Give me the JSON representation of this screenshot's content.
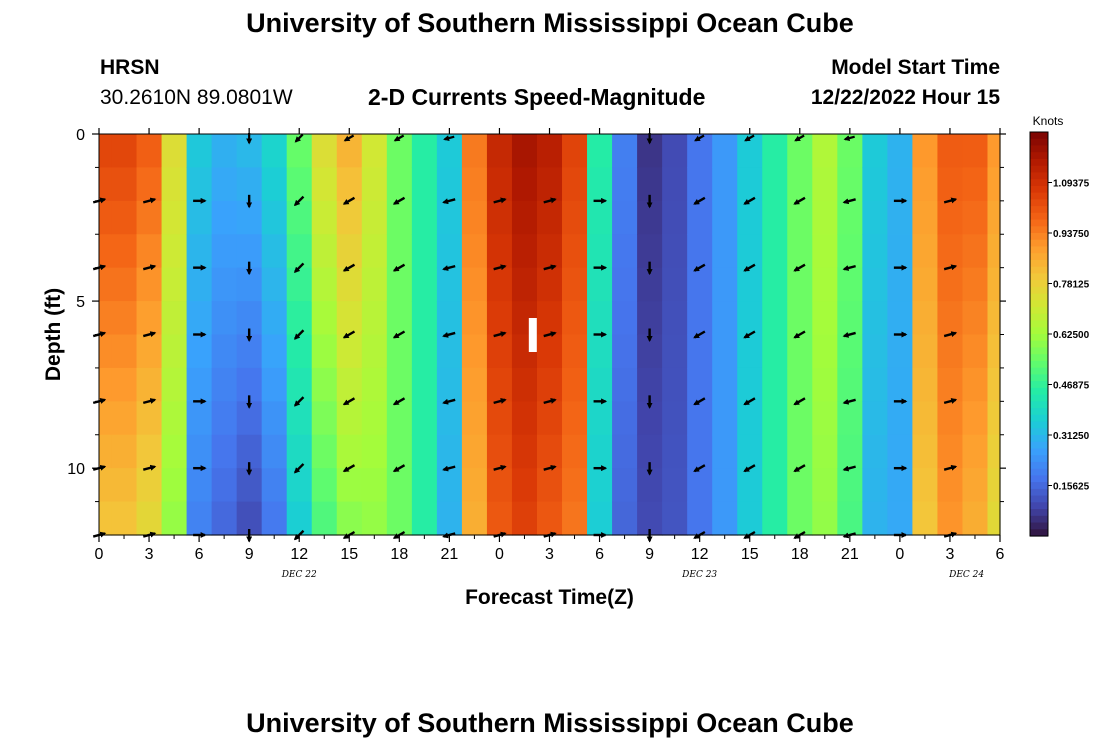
{
  "page": {
    "title_top": "University of Southern Mississippi Ocean Cube",
    "title_bottom": "University of Southern Mississippi Ocean Cube",
    "station_code": "HRSN",
    "station_coords": "30.2610N  89.0801W",
    "plot_title": "2-D Currents Speed-Magnitude",
    "model_start_label": "Model Start Time",
    "model_start_value": "12/22/2022 Hour 15"
  },
  "chart_data": {
    "type": "heatmap",
    "title": "2-D Currents Speed-Magnitude",
    "xlabel": "Forecast Time(Z)",
    "ylabel": "Depth (ft)",
    "x_tick_labels": [
      "0",
      "3",
      "6",
      "9",
      "12",
      "15",
      "18",
      "21",
      "0",
      "3",
      "6",
      "9",
      "12",
      "15",
      "18",
      "21",
      "0",
      "3",
      "6"
    ],
    "x_hours": [
      0,
      3,
      6,
      9,
      12,
      15,
      18,
      21,
      24,
      27,
      30,
      33,
      36,
      39,
      42,
      45,
      48,
      51,
      54
    ],
    "xlim": [
      0,
      54
    ],
    "date_labels": [
      {
        "text": "DEC 22",
        "x_hour": 12
      },
      {
        "text": "DEC 23",
        "x_hour": 36
      },
      {
        "text": "DEC 24",
        "x_hour": 52
      }
    ],
    "y_tick_labels": [
      "0",
      "5",
      "10"
    ],
    "y_ticks": [
      0,
      5,
      10
    ],
    "ylim": [
      0,
      12
    ],
    "y_inverted": true,
    "colorbar": {
      "unit": "Knots",
      "min": 0.0,
      "max": 1.25,
      "ticks": [
        0.15625,
        0.3125,
        0.46875,
        0.625,
        0.78125,
        0.9375,
        1.09375
      ],
      "tick_labels": [
        "0.15625",
        "0.31250",
        "0.46875",
        "0.62500",
        "0.78125",
        "0.93750",
        "1.09375"
      ],
      "colormap": [
        "#30123b",
        "#4145ab",
        "#4675ed",
        "#39a2fc",
        "#1bcfd4",
        "#24eca6",
        "#61fc6c",
        "#a4fc3b",
        "#d1e834",
        "#f3c63a",
        "#fe9b2d",
        "#f36315",
        "#d93806",
        "#b11901",
        "#7a0402"
      ]
    },
    "time_hours": [
      0,
      1.5,
      3,
      4.5,
      6,
      7.5,
      9,
      10.5,
      12,
      13.5,
      15,
      16.5,
      18,
      19.5,
      21,
      22.5,
      24,
      25.5,
      27,
      28.5,
      30,
      31.5,
      33,
      34.5,
      36,
      37.5,
      39,
      40.5,
      42,
      43.5,
      45,
      46.5,
      48,
      49.5,
      51,
      52.5,
      54
    ],
    "surface_speed_knots": [
      1.05,
      1.05,
      1.0,
      0.75,
      0.35,
      0.3,
      0.32,
      0.38,
      0.55,
      0.75,
      0.85,
      0.72,
      0.55,
      0.45,
      0.35,
      0.95,
      1.12,
      1.18,
      1.15,
      1.05,
      0.45,
      0.2,
      0.06,
      0.1,
      0.18,
      0.25,
      0.35,
      0.45,
      0.55,
      0.65,
      0.55,
      0.35,
      0.3,
      0.9,
      1.0,
      1.0,
      0.9
    ],
    "bottom_speed_knots": [
      0.8,
      0.8,
      0.75,
      0.6,
      0.2,
      0.15,
      0.1,
      0.18,
      0.35,
      0.5,
      0.58,
      0.6,
      0.55,
      0.45,
      0.3,
      0.85,
      1.0,
      1.05,
      1.0,
      0.95,
      0.35,
      0.15,
      0.1,
      0.12,
      0.18,
      0.25,
      0.35,
      0.45,
      0.55,
      0.6,
      0.5,
      0.3,
      0.28,
      0.8,
      0.9,
      0.85,
      0.75
    ],
    "depth_ft": [
      0,
      1,
      2,
      3,
      4,
      5,
      6,
      7,
      8,
      9,
      10,
      11,
      12
    ],
    "vector_depths_ft": [
      2,
      4,
      6,
      8,
      10,
      12
    ],
    "vector_hours": [
      0,
      3,
      6,
      9,
      12,
      15,
      18,
      21,
      24,
      27,
      30,
      33,
      36,
      39,
      42,
      45,
      48,
      51
    ],
    "vector_direction_deg": [
      75,
      75,
      90,
      180,
      225,
      240,
      240,
      255,
      75,
      75,
      90,
      180,
      240,
      240,
      240,
      255,
      90,
      75
    ],
    "current_time_marker_hour": 26
  }
}
